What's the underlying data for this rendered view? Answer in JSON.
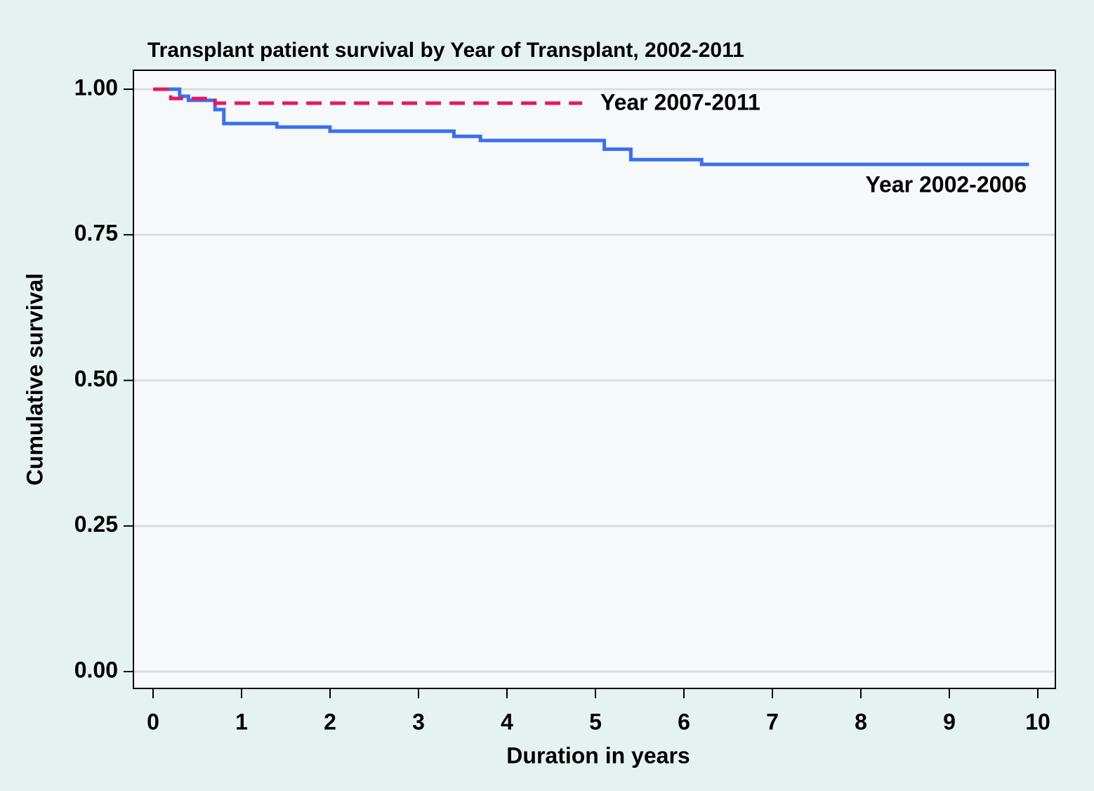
{
  "chart_data": {
    "type": "step-line",
    "title": "Transplant patient survival by Year of Transplant, 2002-2011",
    "xlabel": "Duration in years",
    "ylabel": "Cumulative survival",
    "xlim": [
      0,
      10
    ],
    "ylim": [
      0,
      1
    ],
    "xticks": [
      0,
      1,
      2,
      3,
      4,
      5,
      6,
      7,
      8,
      9,
      10
    ],
    "yticks": [
      {
        "value": 0,
        "label": "0.00"
      },
      {
        "value": 0.25,
        "label": "0.25"
      },
      {
        "value": 0.5,
        "label": "0.50"
      },
      {
        "value": 0.75,
        "label": "0.75"
      },
      {
        "value": 1,
        "label": "1.00"
      }
    ],
    "grid": true,
    "step": "post",
    "series": [
      {
        "name": "Year 2002-2006",
        "color": "#3b6ff0",
        "dash": false,
        "x": [
          0,
          0.3,
          0.4,
          0.7,
          0.8,
          1.4,
          2.0,
          3.4,
          3.7,
          5.1,
          5.4,
          6.2,
          9.9
        ],
        "values": [
          1,
          0.988,
          0.981,
          0.965,
          0.941,
          0.935,
          0.928,
          0.919,
          0.912,
          0.897,
          0.879,
          0.871,
          0.871
        ]
      },
      {
        "name": "Year 2007-2011",
        "color": "#e8175d",
        "dash": true,
        "x": [
          0,
          0.2,
          0.7,
          4.85
        ],
        "values": [
          1,
          0.984,
          0.976,
          0.976
        ]
      }
    ]
  }
}
